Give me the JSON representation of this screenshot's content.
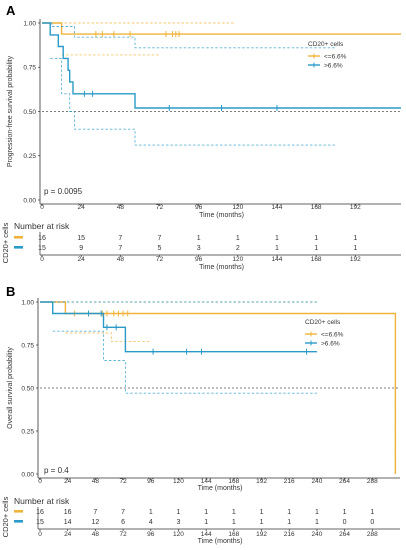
{
  "colors": {
    "low": "#F0B43C",
    "high": "#2A9BC9",
    "ref": "#555555",
    "axis": "#333333"
  },
  "chart_data": [
    {
      "panel": "A",
      "type": "line",
      "subtype": "kaplan-meier",
      "xlabel": "Time (months)",
      "ylabel": "Progression-free survival probability",
      "xlim": [
        0,
        220
      ],
      "ylim": [
        0,
        1
      ],
      "xticks": [
        "0",
        "24",
        "48",
        "72",
        "96",
        "120",
        "144",
        "168",
        "192"
      ],
      "yticks": [
        "0.00",
        "0.25",
        "0.50",
        "0.75",
        "1.00"
      ],
      "pvalue": "p = 0.0095",
      "legend_title": "CD20+ cells",
      "legend_position": "top-right",
      "reference_line": 0.5,
      "series": [
        {
          "name": "<=6.6%",
          "color": "#F0B43C",
          "steps": [
            [
              0,
              1
            ],
            [
              12,
              1
            ],
            [
              12,
              0.9375
            ],
            [
              220,
              0.9375
            ]
          ],
          "ci_upper": [
            [
              0,
              1
            ],
            [
              118,
              1
            ]
          ],
          "ci_lower": [
            [
              12,
              0.82
            ],
            [
              72,
              0.82
            ]
          ],
          "censored": [
            [
              33,
              0.9375
            ],
            [
              37,
              0.9375
            ],
            [
              44,
              0.9375
            ],
            [
              54,
              0.9375
            ],
            [
              76,
              0.9375
            ],
            [
              80,
              0.9375
            ],
            [
              82,
              0.9375
            ],
            [
              84,
              0.9375
            ]
          ]
        },
        {
          "name": ">6.6%",
          "color": "#2A9BC9",
          "steps": [
            [
              0,
              1
            ],
            [
              5,
              1
            ],
            [
              5,
              0.933
            ],
            [
              10,
              0.933
            ],
            [
              10,
              0.867
            ],
            [
              13,
              0.867
            ],
            [
              13,
              0.8
            ],
            [
              16,
              0.8
            ],
            [
              16,
              0.733
            ],
            [
              17,
              0.733
            ],
            [
              17,
              0.667
            ],
            [
              19,
              0.667
            ],
            [
              19,
              0.6
            ],
            [
              57,
              0.6
            ],
            [
              57,
              0.52
            ],
            [
              220,
              0.52
            ]
          ],
          "ci_upper": [
            [
              0,
              1
            ],
            [
              6,
              1
            ],
            [
              6,
              0.98
            ],
            [
              20,
              0.98
            ],
            [
              20,
              0.92
            ],
            [
              57,
              0.92
            ],
            [
              57,
              0.86
            ],
            [
              180,
              0.86
            ]
          ],
          "ci_lower": [
            [
              5,
              0.8
            ],
            [
              12,
              0.8
            ],
            [
              12,
              0.6
            ],
            [
              17,
              0.6
            ],
            [
              17,
              0.5
            ],
            [
              20,
              0.5
            ],
            [
              20,
              0.4
            ],
            [
              57,
              0.4
            ],
            [
              57,
              0.31
            ],
            [
              180,
              0.31
            ]
          ],
          "censored": [
            [
              26,
              0.6
            ],
            [
              31,
              0.6
            ],
            [
              78,
              0.52
            ],
            [
              110,
              0.52
            ],
            [
              144,
              0.52
            ]
          ]
        }
      ],
      "risk_table": {
        "title": "Number at risk",
        "side_label": "CD20+ cells",
        "times": [
          "0",
          "24",
          "48",
          "72",
          "96",
          "120",
          "144",
          "168",
          "192"
        ],
        "rows": [
          {
            "color": "#F0B43C",
            "values": [
              "16",
              "15",
              "7",
              "7",
              "1",
              "1",
              "1",
              "1",
              "1"
            ]
          },
          {
            "color": "#2A9BC9",
            "values": [
              "15",
              "9",
              "7",
              "5",
              "3",
              "2",
              "1",
              "1",
              "1"
            ]
          }
        ],
        "xlabel": "Time (months)"
      }
    },
    {
      "panel": "B",
      "type": "line",
      "subtype": "kaplan-meier",
      "xlabel": "Time (months)",
      "ylabel": "Overall survival probability",
      "xlim": [
        0,
        312
      ],
      "ylim": [
        0,
        1
      ],
      "xticks": [
        "0",
        "24",
        "48",
        "72",
        "96",
        "120",
        "144",
        "168",
        "192",
        "216",
        "240",
        "264",
        "288"
      ],
      "yticks": [
        "0.00",
        "0.25",
        "0.50",
        "0.75",
        "1.00"
      ],
      "pvalue": "p = 0.4",
      "legend_title": "CD20+ cells",
      "legend_position": "top-right",
      "reference_line": 0.5,
      "series": [
        {
          "name": "<=6.6%",
          "color": "#F0B43C",
          "steps": [
            [
              0,
              1
            ],
            [
              22,
              1
            ],
            [
              22,
              0.933
            ],
            [
              308,
              0.933
            ],
            [
              308,
              0
            ]
          ],
          "ci_upper": [
            [
              0,
              1
            ],
            [
              240,
              1
            ]
          ],
          "ci_lower": [
            [
              22,
              0.82
            ],
            [
              62,
              0.82
            ],
            [
              62,
              0.77
            ],
            [
              96,
              0.77
            ]
          ],
          "ci_extra": [
            [
              308,
              0.5
            ],
            [
              308,
              0
            ]
          ],
          "censored": [
            [
              30,
              0.933
            ],
            [
              54,
              0.933
            ],
            [
              58,
              0.933
            ],
            [
              64,
              0.933
            ],
            [
              68,
              0.933
            ],
            [
              72,
              0.933
            ],
            [
              76,
              0.933
            ]
          ]
        },
        {
          "name": ">6.6%",
          "color": "#2A9BC9",
          "steps": [
            [
              0,
              1
            ],
            [
              11,
              1
            ],
            [
              11,
              0.933
            ],
            [
              55,
              0.933
            ],
            [
              55,
              0.853
            ],
            [
              74,
              0.853
            ],
            [
              74,
              0.711
            ],
            [
              240,
              0.711
            ]
          ],
          "ci_upper": [
            [
              0,
              1
            ],
            [
              240,
              1
            ]
          ],
          "ci_lower": [
            [
              11,
              0.83
            ],
            [
              55,
              0.83
            ],
            [
              55,
              0.66
            ],
            [
              74,
              0.66
            ],
            [
              74,
              0.47
            ],
            [
              240,
              0.47
            ]
          ],
          "censored": [
            [
              42,
              0.933
            ],
            [
              53,
              0.933
            ],
            [
              58,
              0.853
            ],
            [
              66,
              0.853
            ],
            [
              98,
              0.711
            ],
            [
              127,
              0.711
            ],
            [
              140,
              0.711
            ],
            [
              231,
              0.711
            ]
          ]
        }
      ],
      "risk_table": {
        "title": "Number at risk",
        "side_label": "CD20+ cells",
        "times": [
          "0",
          "24",
          "48",
          "72",
          "96",
          "120",
          "144",
          "168",
          "192",
          "216",
          "240",
          "264",
          "288"
        ],
        "rows": [
          {
            "color": "#F0B43C",
            "values": [
              "16",
              "16",
              "7",
              "7",
              "1",
              "1",
              "1",
              "1",
              "1",
              "1",
              "1",
              "1",
              "1"
            ]
          },
          {
            "color": "#2A9BC9",
            "values": [
              "15",
              "14",
              "12",
              "6",
              "4",
              "3",
              "1",
              "1",
              "1",
              "1",
              "1",
              "0",
              "0"
            ]
          }
        ],
        "xlabel": "Time (months)"
      }
    }
  ]
}
